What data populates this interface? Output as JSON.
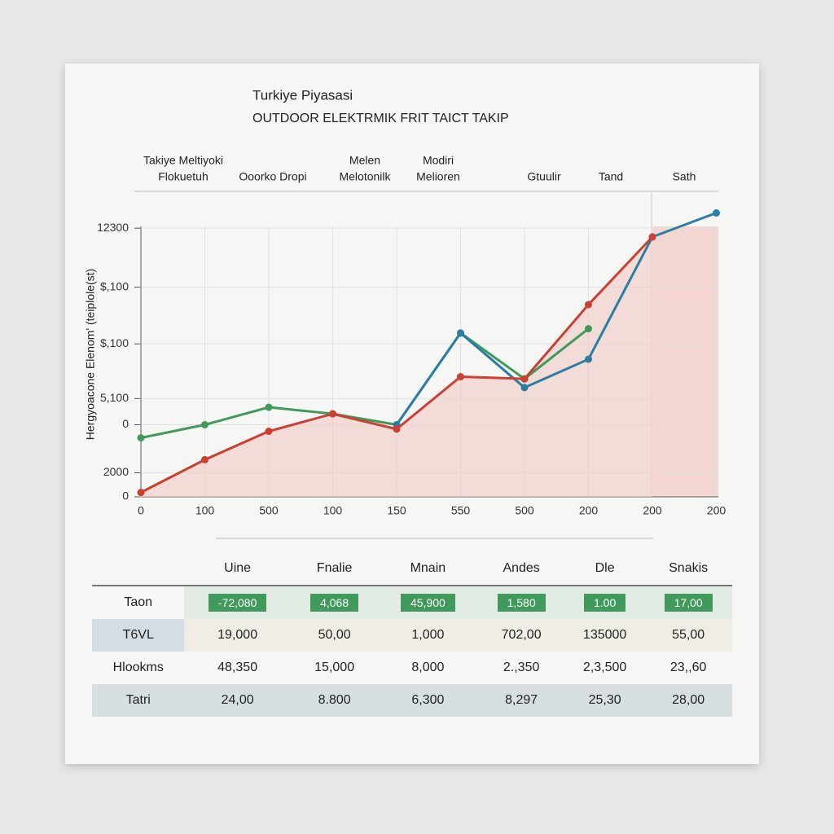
{
  "chart_data": {
    "type": "line",
    "title": "Turkiye Piyasasi",
    "subtitle": "OUTDOOR ELEKTRMIK FRIT TAICT TAKIP",
    "column_headers": [
      [
        "Takiye Meltiyoki",
        "Flokuetuh"
      ],
      [
        "Ooorko Dropi"
      ],
      [
        "Melen",
        "Melotonilk"
      ],
      [
        "Modiri",
        "Melioren"
      ],
      [
        "Gtuulir"
      ],
      [
        "Tand"
      ],
      [
        "Sath"
      ]
    ],
    "y_label": "Hergyoacone Elenom' (teiplole(st)",
    "categories": [
      "0",
      "100",
      "500",
      "100",
      "150",
      "550",
      "500",
      "200",
      "200",
      "200"
    ],
    "ylim": [
      0,
      13500
    ],
    "yticks": [
      0,
      {
        "value": 1100,
        "label": "2000"
      },
      {
        "value": 3300,
        "label": "0"
      },
      {
        "value": 4500,
        "label": "5,100"
      },
      {
        "value": 7000,
        "label": "$,100"
      },
      {
        "value": 9600,
        "label": "$,100"
      },
      12300
    ],
    "grid": true,
    "series": [
      {
        "name": "Green",
        "color": "#3f9a5b",
        "values": [
          2700,
          3300,
          4100,
          3800,
          3300,
          7500,
          5400,
          7700,
          null,
          null
        ]
      },
      {
        "name": "Blue",
        "color": "#2a7ea3",
        "values": [
          null,
          null,
          null,
          null,
          3300,
          7500,
          5000,
          6300,
          11900,
          13000
        ]
      },
      {
        "name": "Red",
        "color": "#cc3f33",
        "fill": "#f2c9c3",
        "values": [
          200,
          1700,
          3000,
          3800,
          3100,
          5500,
          5400,
          8800,
          11900,
          null
        ]
      }
    ]
  },
  "table": {
    "headers": [
      "Uine",
      "Fnalie",
      "Mnain",
      "Andes",
      "Dle",
      "Snakis"
    ],
    "rows": [
      [
        "Taon",
        "-72,080",
        "4,068",
        "45,900",
        "1,580",
        "1.00",
        "17,00"
      ],
      [
        "T6VL",
        "19,000",
        "50,00",
        "1,000",
        "702,00",
        "135000",
        "55,00"
      ],
      [
        "Hlookms",
        "48,350",
        "15,000",
        "8,000",
        "2.,350",
        "2,3,500",
        "23,,60"
      ],
      [
        "Tatri",
        "24,00",
        "8.800",
        "6,300",
        "8,297",
        "25,30",
        "28,00"
      ]
    ]
  }
}
